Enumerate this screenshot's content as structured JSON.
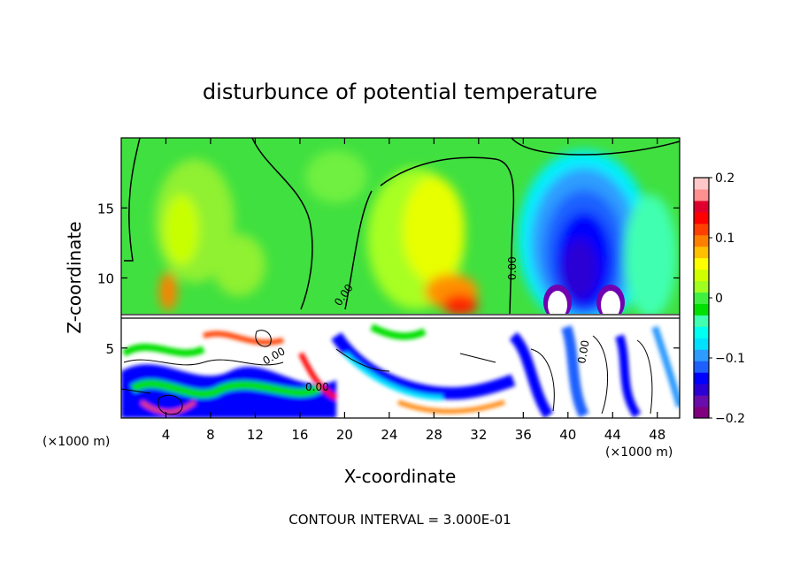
{
  "chart_data": {
    "type": "heatmap",
    "title": "disturbunce of potential temperature",
    "xlabel": "X-coordinate",
    "ylabel": "Z-coordinate",
    "x_unit": "(×1000 m)",
    "y_unit": "(×1000 m)",
    "xlim": [
      0,
      50
    ],
    "ylim": [
      0,
      20
    ],
    "x_ticks": [
      4,
      8,
      12,
      16,
      20,
      24,
      28,
      32,
      36,
      40,
      44,
      48
    ],
    "y_ticks": [
      5,
      10,
      15
    ],
    "colorbar": {
      "min": -0.2,
      "max": 0.2,
      "tick_values": [
        0.2,
        0.1,
        0,
        -0.1,
        -0.2
      ],
      "tick_labels": [
        "0.2",
        "0.1",
        "0",
        "−0.1",
        "−0.2"
      ],
      "colors": [
        "#800080",
        "#6a0dad",
        "#2b00d4",
        "#0000ff",
        "#1e60ff",
        "#2e9bff",
        "#00e0ff",
        "#00fff0",
        "#40ffb0",
        "#00e000",
        "#40f040",
        "#a0ff20",
        "#d0ff00",
        "#ffff00",
        "#ffc000",
        "#ff8000",
        "#ff4000",
        "#ff0000",
        "#e00030",
        "#ff9090",
        "#ffc8c8"
      ]
    },
    "contour_interval_label": "CONTOUR INTERVAL =  3.000E-01",
    "contour_labels": [
      "0.00",
      "0.00",
      "0.00",
      "0.00",
      "0.00"
    ],
    "grid": false,
    "legend": "colorbar-right"
  }
}
